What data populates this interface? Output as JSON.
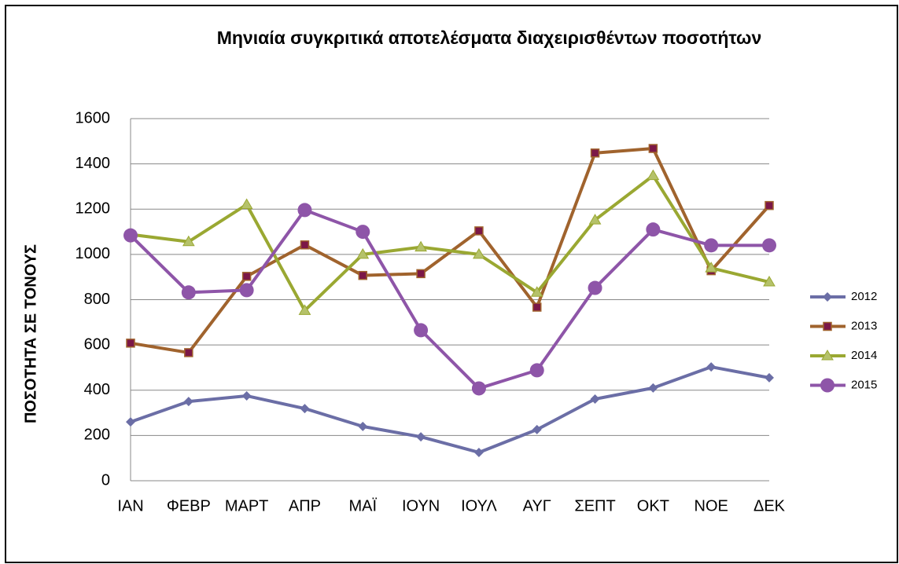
{
  "chart_data": {
    "type": "line",
    "title": "Μηνιαία συγκριτικά αποτελέσματα διαχειρισθέντων ποσοτήτων",
    "y_label": "ΠΟΣΟΤΗΤΑ ΣΕ ΤΟΝΟΥΣ",
    "categories": [
      "ΙΑΝ",
      "ΦΕΒΡ",
      "ΜΑΡΤ",
      "ΑΠΡ",
      "ΜΑΪ",
      "ΙΟΥΝ",
      "ΙΟΥΛ",
      "ΑΥΓ",
      "ΣΕΠΤ",
      "ΟΚΤ",
      "ΝΟΕ",
      "ΔΕΚ"
    ],
    "series": [
      {
        "name": "2012",
        "color": "#6b6ea6",
        "marker": "diamond",
        "values": [
          260,
          350,
          375,
          319,
          240,
          194,
          125,
          226,
          361,
          410,
          503,
          455
        ]
      },
      {
        "name": "2013",
        "color": "#a0632d",
        "marker": "square",
        "values": [
          608,
          566,
          903,
          1042,
          907,
          915,
          1104,
          767,
          1448,
          1468,
          928,
          1216
        ]
      },
      {
        "name": "2014",
        "color": "#9aa832",
        "marker": "triangle",
        "values": [
          1088,
          1056,
          1220,
          752,
          1000,
          1032,
          1000,
          832,
          1152,
          1348,
          940,
          878
        ]
      },
      {
        "name": "2015",
        "color": "#8e55a8",
        "marker": "circle",
        "values": [
          1084,
          832,
          842,
          1196,
          1100,
          665,
          408,
          488,
          852,
          1110,
          1040,
          1040
        ]
      }
    ],
    "ylim": [
      0,
      1600
    ],
    "yticks": [
      0,
      200,
      400,
      600,
      800,
      1000,
      1200,
      1400,
      1600
    ],
    "grid": true,
    "legend": "right"
  }
}
